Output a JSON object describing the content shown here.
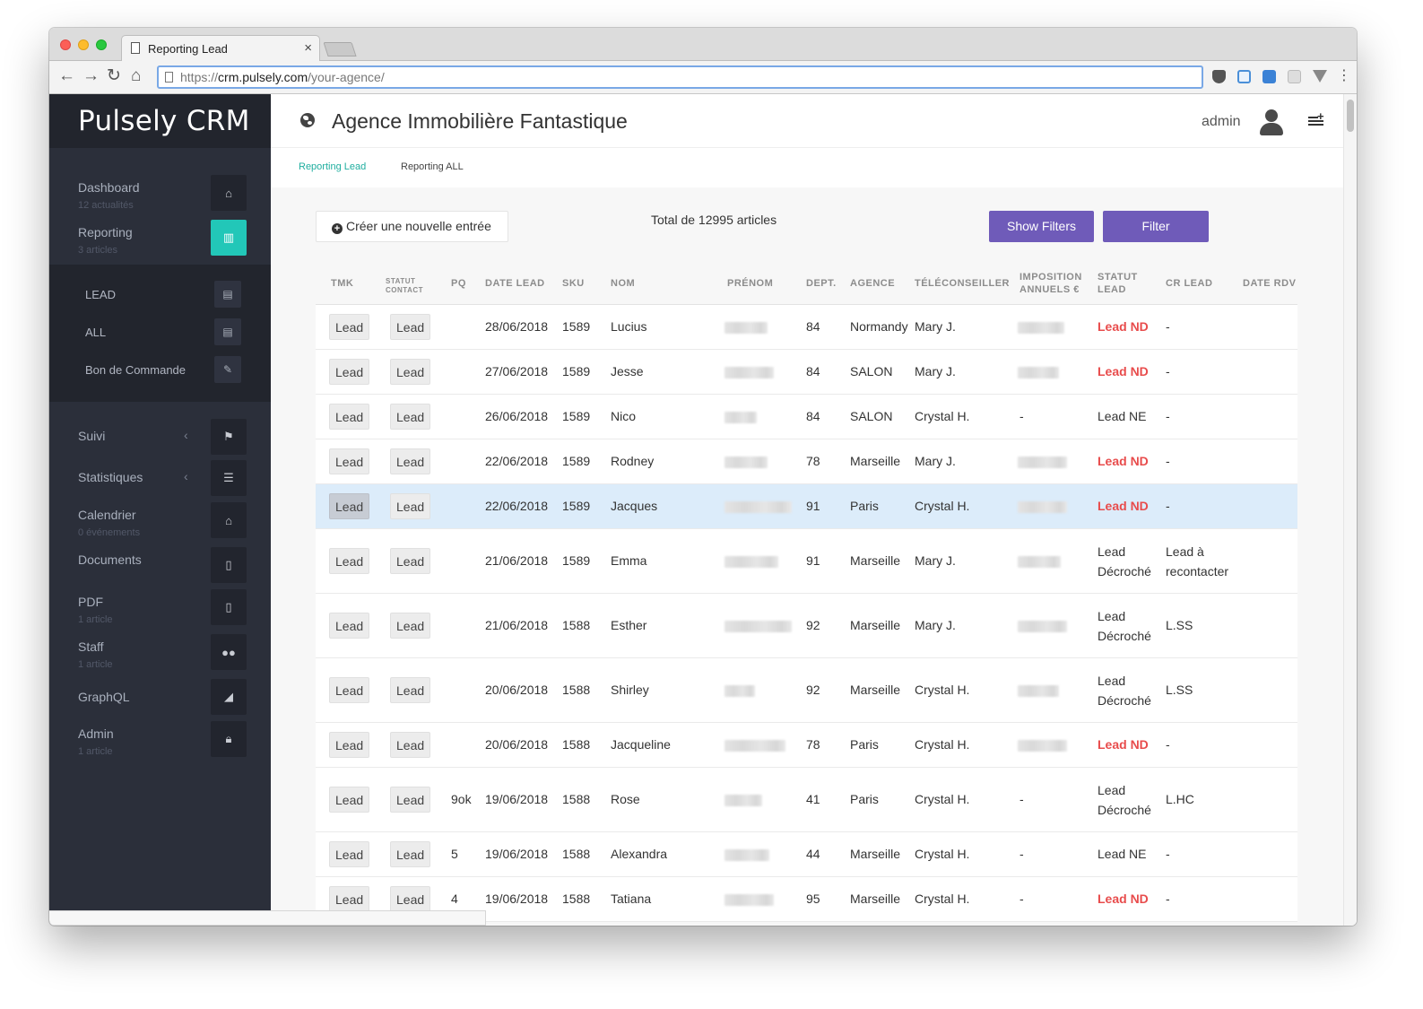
{
  "browser": {
    "tab_title": "Reporting Lead",
    "tab_close": "×",
    "url_scheme": "https://",
    "url_host": "crm.pulsely.com",
    "url_path": "/your-agence/",
    "nav": {
      "back": "←",
      "forward": "→",
      "reload": "↻",
      "home": "⌂"
    }
  },
  "sidebar": {
    "brand": "Pulsely CRM",
    "active_color": "#22c7b8",
    "items": [
      {
        "label": "Dashboard",
        "sub": "12 actualités",
        "icon": "home-icon"
      },
      {
        "label": "Reporting",
        "sub": "3 articles",
        "icon": "bar-chart-icon"
      },
      {
        "label": "Suivi",
        "sub": "",
        "icon": "flag-icon"
      },
      {
        "label": "Statistiques",
        "sub": "",
        "icon": "list-icon"
      },
      {
        "label": "Calendrier",
        "sub": "0 événements",
        "icon": "home-icon"
      },
      {
        "label": "Documents",
        "sub": "",
        "icon": "pdf-file-icon"
      },
      {
        "label": "PDF",
        "sub": "1 article",
        "icon": "pdf-file-icon"
      },
      {
        "label": "Staff",
        "sub": "1 article",
        "icon": "users-icon"
      },
      {
        "label": "GraphQL",
        "sub": "",
        "icon": "area-chart-icon"
      },
      {
        "label": "Admin",
        "sub": "1 article",
        "icon": "lock-icon"
      }
    ],
    "submenu": [
      {
        "label": "LEAD",
        "icon": "table-icon"
      },
      {
        "label": "ALL",
        "icon": "table-icon"
      },
      {
        "label": "Bon de Commande",
        "icon": "pencil-icon"
      }
    ],
    "chevron": "‹"
  },
  "header": {
    "agency": "Agence Immobilière Fantastique",
    "user": "admin"
  },
  "subnav": {
    "tabs": [
      "Reporting Lead",
      "Reporting ALL"
    ],
    "active": "Reporting Lead"
  },
  "toolbar": {
    "create_label": "Créer une nouvelle entrée",
    "total": "Total de 12995 articles",
    "show_filters": "Show Filters",
    "filter": "Filter",
    "button_color": "#6f5bb9"
  },
  "table": {
    "headers": [
      "TMK",
      "STATUT CONTACT",
      "PQ",
      "DATE LEAD",
      "SKU",
      "NOM",
      "PRÉNOM",
      "DEPT.",
      "AGENCE",
      "TÉLÉCONSEILLER",
      "IMPOSITION ANNUELS €",
      "STATUT LEAD",
      "CR LEAD",
      "DATE RDV"
    ],
    "status_nd_color": "#e84c4c",
    "rows": [
      {
        "tmk": "Lead",
        "contact": "Lead",
        "pq": "",
        "date": "28/06/2018",
        "sku": "1589",
        "nom": "Lucius",
        "dept": "84",
        "agence": "Normandy",
        "tele": "Mary J.",
        "imposition": "",
        "statut": "Lead ND",
        "cr": "-"
      },
      {
        "tmk": "Lead",
        "contact": "Lead",
        "pq": "",
        "date": "27/06/2018",
        "sku": "1589",
        "nom": "Jesse",
        "dept": "84",
        "agence": "SALON",
        "tele": "Mary J.",
        "imposition": "",
        "statut": "Lead ND",
        "cr": "-"
      },
      {
        "tmk": "Lead",
        "contact": "Lead",
        "pq": "",
        "date": "26/06/2018",
        "sku": "1589",
        "nom": "Nico",
        "dept": "84",
        "agence": "SALON",
        "tele": "Crystal H.",
        "imposition": "-",
        "statut": "Lead NE",
        "cr": "-"
      },
      {
        "tmk": "Lead",
        "contact": "Lead",
        "pq": "",
        "date": "22/06/2018",
        "sku": "1589",
        "nom": "Rodney",
        "dept": "78",
        "agence": "Marseille",
        "tele": "Mary J.",
        "imposition": "",
        "statut": "Lead ND",
        "cr": "-"
      },
      {
        "tmk": "Lead",
        "contact": "Lead",
        "pq": "",
        "date": "22/06/2018",
        "sku": "1589",
        "nom": "Jacques",
        "dept": "91",
        "agence": "Paris",
        "tele": "Crystal H.",
        "imposition": "",
        "statut": "Lead ND",
        "cr": "-"
      },
      {
        "tmk": "Lead",
        "contact": "Lead",
        "pq": "",
        "date": "21/06/2018",
        "sku": "1589",
        "nom": "Emma",
        "dept": "91",
        "agence": "Marseille",
        "tele": "Mary J.",
        "imposition": "",
        "statut": "Lead Décroché",
        "cr": "Lead à recontacter"
      },
      {
        "tmk": "Lead",
        "contact": "Lead",
        "pq": "",
        "date": "21/06/2018",
        "sku": "1588",
        "nom": "Esther",
        "dept": "92",
        "agence": "Marseille",
        "tele": "Mary J.",
        "imposition": "",
        "statut": "Lead Décroché",
        "cr": "L.SS"
      },
      {
        "tmk": "Lead",
        "contact": "Lead",
        "pq": "",
        "date": "20/06/2018",
        "sku": "1588",
        "nom": "Shirley",
        "dept": "92",
        "agence": "Marseille",
        "tele": "Crystal H.",
        "imposition": "",
        "statut": "Lead Décroché",
        "cr": "L.SS"
      },
      {
        "tmk": "Lead",
        "contact": "Lead",
        "pq": "",
        "date": "20/06/2018",
        "sku": "1588",
        "nom": "Jacqueline",
        "dept": "78",
        "agence": "Paris",
        "tele": "Crystal H.",
        "imposition": "",
        "statut": "Lead ND",
        "cr": "-"
      },
      {
        "tmk": "Lead",
        "contact": "Lead",
        "pq": "9ok",
        "date": "19/06/2018",
        "sku": "1588",
        "nom": "Rose",
        "dept": "41",
        "agence": "Paris",
        "tele": "Crystal H.",
        "imposition": "-",
        "statut": "Lead Décroché",
        "cr": "L.HC"
      },
      {
        "tmk": "Lead",
        "contact": "Lead",
        "pq": "5",
        "date": "19/06/2018",
        "sku": "1588",
        "nom": "Alexandra",
        "dept": "44",
        "agence": "Marseille",
        "tele": "Crystal H.",
        "imposition": "-",
        "statut": "Lead NE",
        "cr": "-"
      },
      {
        "tmk": "Lead",
        "contact": "Lead",
        "pq": "4",
        "date": "19/06/2018",
        "sku": "1588",
        "nom": "Tatiana",
        "dept": "95",
        "agence": "Marseille",
        "tele": "Crystal H.",
        "imposition": "-",
        "statut": "Lead ND",
        "cr": "-"
      }
    ]
  }
}
